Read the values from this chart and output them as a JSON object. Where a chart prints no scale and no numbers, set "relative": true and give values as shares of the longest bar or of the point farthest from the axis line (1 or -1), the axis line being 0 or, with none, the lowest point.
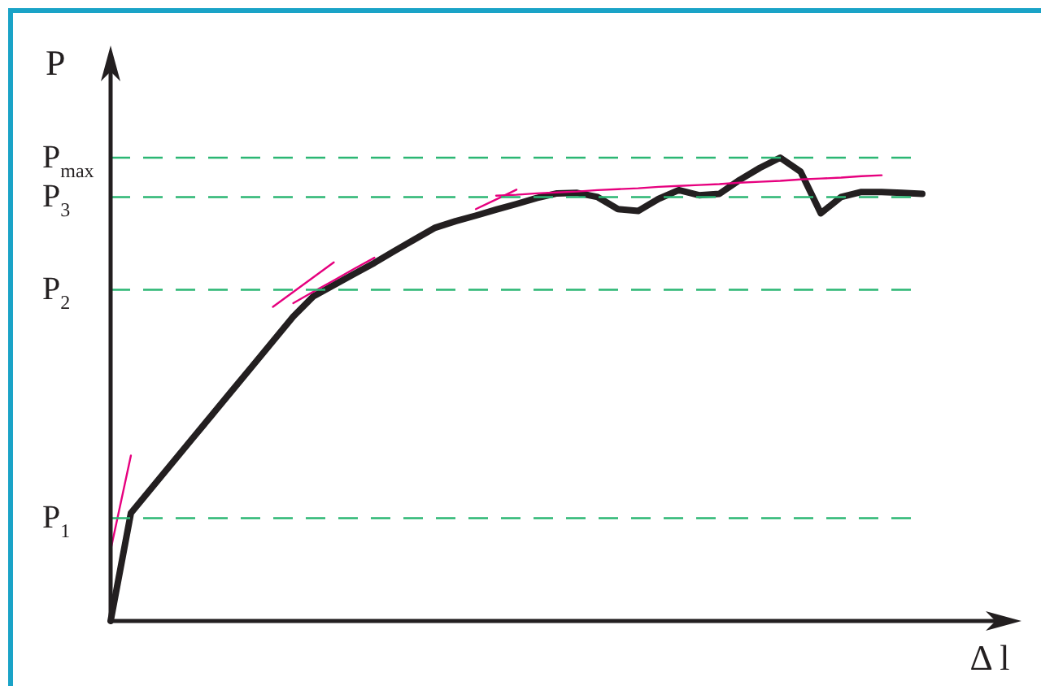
{
  "chart_data": {
    "type": "line",
    "relative": true,
    "ylabel": "P",
    "xlabel": "Δ l",
    "tick_labels": false,
    "legend": false,
    "marker": "none",
    "line_style": "solid",
    "categories": [
      null,
      null,
      null,
      null,
      null,
      null,
      null,
      null,
      null,
      null,
      null,
      null,
      null,
      null,
      null,
      null,
      null,
      null,
      null,
      null,
      null,
      null,
      null,
      null,
      null,
      null,
      null,
      null,
      null,
      null,
      null,
      null,
      null,
      null,
      null,
      null,
      null,
      null,
      null,
      null,
      null
    ],
    "series": [
      {
        "color": "#231f20",
        "values": [
          0,
          0.233,
          0.286,
          0.339,
          0.392,
          0.445,
          0.498,
          0.551,
          0.604,
          0.657,
          0.701,
          0.725,
          0.749,
          0.773,
          0.799,
          0.824,
          0.849,
          0.863,
          0.875,
          0.888,
          0.9,
          0.913,
          0.923,
          0.924,
          0.915,
          0.889,
          0.885,
          0.911,
          0.93,
          0.919,
          0.922,
          0.952,
          0.978,
          1,
          0.97,
          0.88,
          0.915,
          0.926,
          0.926,
          0.924,
          0.922
        ]
      },
      {
        "color": "#e6007e",
        "values": [
          0.153,
          0.357,
          null,
          null,
          null,
          null,
          null,
          null,
          null,
          null,
          null,
          null,
          null,
          null,
          null,
          null,
          null,
          null,
          null,
          null,
          null,
          null,
          null,
          null,
          null,
          null,
          null,
          null,
          null,
          null,
          null,
          null,
          null,
          null,
          null,
          null,
          null,
          null,
          null,
          null,
          null
        ]
      },
      {
        "color": "#e6007e",
        "values": [
          null,
          null,
          null,
          null,
          null,
          null,
          null,
          null,
          0.678,
          0.71,
          0.742,
          0.774,
          null,
          null,
          null,
          null,
          null,
          null,
          null,
          null,
          null,
          null,
          null,
          null,
          null,
          null,
          null,
          null,
          null,
          null,
          null,
          null,
          null,
          null,
          null,
          null,
          null,
          null,
          null,
          null,
          null
        ]
      },
      {
        "color": "#e6007e",
        "values": [
          null,
          null,
          null,
          null,
          null,
          null,
          null,
          null,
          null,
          0.686,
          0.711,
          0.735,
          0.76,
          0.784,
          null,
          null,
          null,
          null,
          null,
          null,
          null,
          null,
          null,
          null,
          null,
          null,
          null,
          null,
          null,
          null,
          null,
          null,
          null,
          null,
          null,
          null,
          null,
          null,
          null,
          null,
          null
        ]
      },
      {
        "color": "#e6007e",
        "values": [
          null,
          null,
          null,
          null,
          null,
          null,
          null,
          null,
          null,
          null,
          null,
          null,
          null,
          null,
          null,
          null,
          null,
          null,
          0.889,
          0.91,
          0.931,
          null,
          null,
          null,
          null,
          null,
          null,
          null,
          null,
          null,
          null,
          null,
          null,
          null,
          null,
          null,
          null,
          null,
          null,
          null,
          null
        ]
      },
      {
        "color": "#e6007e",
        "values": [
          null,
          null,
          null,
          null,
          null,
          null,
          null,
          null,
          null,
          null,
          null,
          null,
          null,
          null,
          null,
          null,
          null,
          null,
          null,
          0.918,
          0.92,
          0.923,
          0.925,
          0.927,
          0.93,
          0.932,
          0.934,
          0.937,
          0.939,
          0.941,
          0.943,
          0.946,
          0.948,
          0.95,
          0.953,
          0.955,
          0.957,
          0.96,
          0.962,
          null,
          null
        ]
      }
    ],
    "ref_lines": [
      {
        "axis": "y",
        "value": 1,
        "label": "P$_{max}$",
        "color": "#2bb673",
        "line_style": "dashed"
      },
      {
        "axis": "y",
        "value": 0.915,
        "label": "P$_{3}$",
        "color": "#2bb673",
        "line_style": "dashed"
      },
      {
        "axis": "y",
        "value": 0.715,
        "label": "P$_{2}$",
        "color": "#2bb673",
        "line_style": "dashed"
      },
      {
        "axis": "y",
        "value": 0.222,
        "label": "P$_{1}$",
        "color": "#2bb673",
        "line_style": "dashed"
      }
    ]
  }
}
